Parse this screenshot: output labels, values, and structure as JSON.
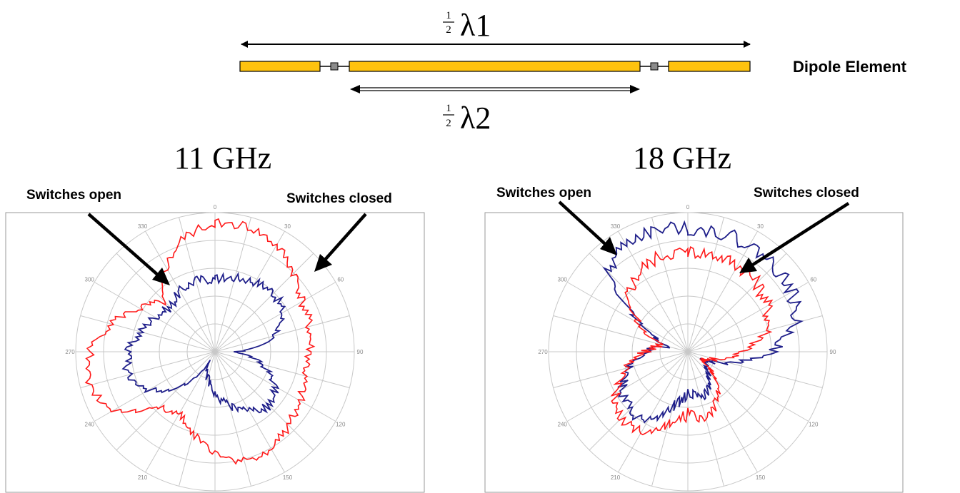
{
  "diagram": {
    "lambda1": {
      "fraction_num": "1",
      "fraction_den": "2",
      "symbol": "λ1"
    },
    "lambda2": {
      "fraction_num": "1",
      "fraction_den": "2",
      "symbol": "λ2"
    },
    "element_label": "Dipole Element"
  },
  "colors": {
    "dipole_fill": "#ffc20e",
    "switch_fill": "#8c8c8c",
    "open_trace": "#1f1f8a",
    "closed_trace": "#ff1a1a",
    "grid": "#c8c8c8",
    "arrow": "#000000"
  },
  "plots": [
    {
      "title": "11 GHz",
      "open_label": "Switches open",
      "closed_label": "Switches closed",
      "angle_ticks": [
        "0",
        "30",
        "60",
        "90",
        "120",
        "150",
        "180",
        "210",
        "240",
        "270",
        "300",
        "330"
      ],
      "open_radius_profile": [
        0.52,
        0.55,
        0.58,
        0.6,
        0.56,
        0.45,
        0.15,
        0.35,
        0.5,
        0.55,
        0.5,
        0.4,
        0.3,
        0.2,
        0.1,
        0.35,
        0.55,
        0.65,
        0.62,
        0.55,
        0.5,
        0.45,
        0.5,
        0.53
      ],
      "closed_radius_profile": [
        0.92,
        0.93,
        0.88,
        0.8,
        0.72,
        0.7,
        0.68,
        0.66,
        0.7,
        0.75,
        0.8,
        0.82,
        0.72,
        0.62,
        0.5,
        0.55,
        0.85,
        0.93,
        0.9,
        0.78,
        0.62,
        0.5,
        0.7,
        0.85
      ],
      "noise": 0.035
    },
    {
      "title": "18 GHz",
      "open_label": "Switches open",
      "closed_label": "Switches closed",
      "angle_ticks": [
        "0",
        "30",
        "60",
        "90",
        "120",
        "150",
        "180",
        "210",
        "240",
        "270",
        "300",
        "330"
      ],
      "open_radius_profile": [
        0.88,
        0.89,
        0.88,
        0.88,
        0.86,
        0.8,
        0.6,
        0.3,
        0.1,
        0.2,
        0.3,
        0.35,
        0.3,
        0.4,
        0.55,
        0.6,
        0.55,
        0.45,
        0.3,
        0.15,
        0.35,
        0.8,
        0.9,
        0.9
      ],
      "closed_radius_profile": [
        0.72,
        0.72,
        0.72,
        0.7,
        0.66,
        0.6,
        0.4,
        0.2,
        0.1,
        0.3,
        0.4,
        0.5,
        0.45,
        0.55,
        0.65,
        0.7,
        0.6,
        0.45,
        0.3,
        0.2,
        0.4,
        0.6,
        0.68,
        0.72
      ],
      "noise": 0.05
    }
  ]
}
